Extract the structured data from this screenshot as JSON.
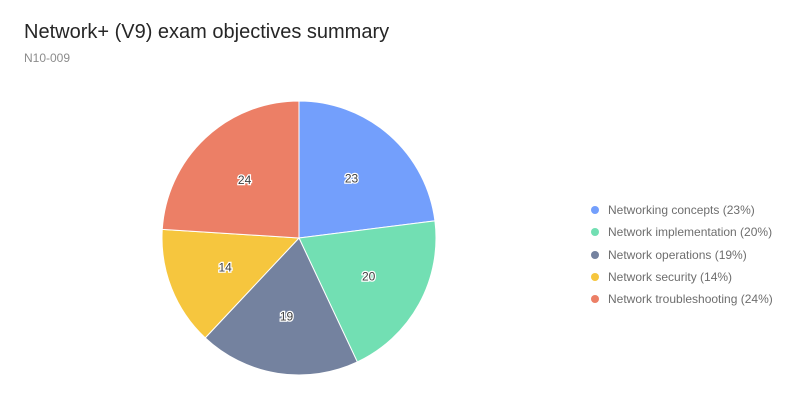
{
  "header": {
    "title": "Network+ (V9) exam objectives summary",
    "subtitle": "N10-009"
  },
  "legend": {
    "items": [
      {
        "label": "Networking concepts (23%)",
        "color": "#739ffc"
      },
      {
        "label": "Network implementation (20%)",
        "color": "#72dfb3"
      },
      {
        "label": "Network operations (19%)",
        "color": "#74829f"
      },
      {
        "label": "Network security (14%)",
        "color": "#f6c63e"
      },
      {
        "label": "Network troubleshooting (24%)",
        "color": "#ec7f66"
      }
    ]
  },
  "chart_data": {
    "type": "pie",
    "title": "Network+ (V9) exam objectives summary",
    "subtitle": "N10-009",
    "categories": [
      "Networking concepts",
      "Network implementation",
      "Network operations",
      "Network security",
      "Network troubleshooting"
    ],
    "values": [
      23,
      20,
      19,
      14,
      24
    ],
    "colors": [
      "#739ffc",
      "#72dfb3",
      "#74829f",
      "#f6c63e",
      "#ec7f66"
    ],
    "data_labels": [
      "23",
      "20",
      "19",
      "14",
      "24"
    ],
    "legend_position": "right",
    "start_angle": "top, clockwise"
  }
}
